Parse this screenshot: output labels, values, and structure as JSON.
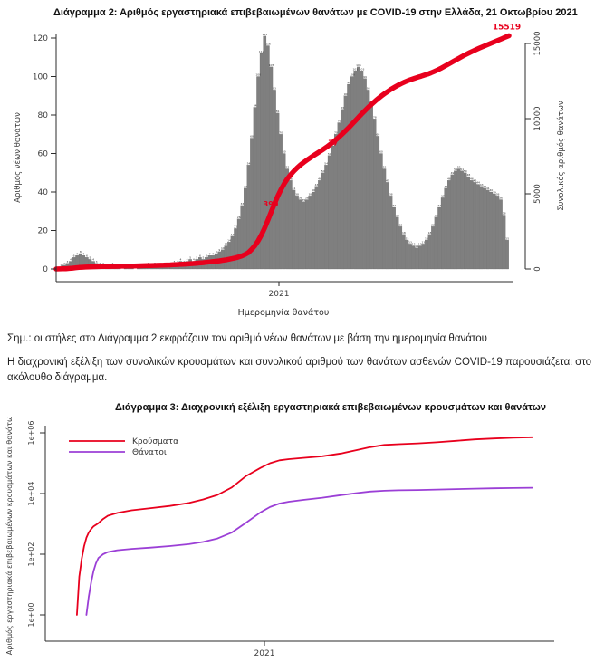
{
  "page": {
    "note": "Σημ.: οι στήλες στο Διάγραμμα 2 εκφράζουν τον αριθμό νέων θανάτων με βάση την ημερομηνία θανάτου",
    "paragraph": "Η διαχρονική εξέλιξη των συνολικών κρουσμάτων και συνολικού αριθμού των θανάτων ασθενών COVID-19 παρουσιάζεται στο ακόλουθο διάγραμμα."
  },
  "chart_data": [
    {
      "type": "bar",
      "title": "Διάγραμμα 2: Αριθμός εργαστηριακά επιβεβαιωμένων θανάτων με COVID-19 στην Ελλάδα, 21 Οκτωβρίου 2021",
      "xlabel": "Ημερομηνία θανάτου",
      "ylabel_left": "Αριθμός νέων θανάτων",
      "ylabel_right": "Συνολικός αριθμός θανάτων",
      "x_ticks": [
        "2021"
      ],
      "y_left_ticks": [
        0,
        20,
        40,
        60,
        80,
        100,
        120
      ],
      "y_right_ticks": [
        0,
        5000,
        10000,
        15000
      ],
      "ylim_left": [
        0,
        120
      ],
      "ylim_right": [
        0,
        15000
      ],
      "grid": false,
      "bar_color": "#7f7f7f",
      "line_color": "#e8001d",
      "bars_daily_deaths": [
        0,
        1,
        2,
        3,
        4,
        6,
        7,
        8,
        7,
        6,
        5,
        4,
        3,
        2,
        2,
        1,
        1,
        2,
        1,
        1,
        0,
        1,
        1,
        1,
        0,
        1,
        1,
        1,
        2,
        1,
        2,
        2,
        1,
        2,
        2,
        2,
        3,
        3,
        4,
        3,
        4,
        5,
        4,
        5,
        6,
        5,
        6,
        7,
        7,
        8,
        9,
        10,
        12,
        14,
        17,
        21,
        26,
        33,
        42,
        54,
        68,
        84,
        100,
        112,
        121,
        116,
        105,
        93,
        81,
        70,
        60,
        52,
        46,
        41,
        38,
        36,
        35,
        36,
        38,
        40,
        43,
        46,
        50,
        54,
        59,
        64,
        70,
        76,
        83,
        90,
        96,
        100,
        103,
        105,
        103,
        99,
        93,
        86,
        78,
        69,
        60,
        52,
        45,
        38,
        32,
        27,
        22,
        18,
        15,
        13,
        12,
        11,
        12,
        13,
        15,
        18,
        22,
        27,
        32,
        37,
        42,
        46,
        49,
        51,
        52,
        51,
        50,
        48,
        46,
        45,
        44,
        43,
        42,
        41,
        40,
        39,
        38,
        36,
        28,
        15
      ],
      "line_cumulative_deaths": [
        0,
        4,
        10,
        20,
        35,
        55,
        80,
        100,
        115,
        128,
        137,
        145,
        151,
        156,
        161,
        165,
        169,
        173,
        177,
        181,
        185,
        189,
        193,
        197,
        201,
        206,
        211,
        216,
        222,
        228,
        234,
        241,
        248,
        256,
        264,
        273,
        283,
        294,
        306,
        319,
        333,
        348,
        364,
        381,
        399,
        418,
        439,
        461,
        485,
        511,
        539,
        570,
        604,
        642,
        685,
        735,
        795,
        870,
        965,
        1085,
        1300,
        1550,
        1870,
        2260,
        2720,
        3240,
        3790,
        4330,
        4830,
        5280,
        5670,
        6000,
        6280,
        6520,
        6730,
        6920,
        7090,
        7250,
        7400,
        7540,
        7680,
        7820,
        7960,
        8110,
        8270,
        8440,
        8620,
        8810,
        9010,
        9220,
        9440,
        9670,
        9900,
        10130,
        10360,
        10580,
        10790,
        10990,
        11180,
        11360,
        11530,
        11690,
        11840,
        11980,
        12110,
        12230,
        12340,
        12440,
        12530,
        12610,
        12680,
        12750,
        12820,
        12890,
        12960,
        13040,
        13130,
        13230,
        13340,
        13460,
        13580,
        13700,
        13820,
        13940,
        14060,
        14180,
        14290,
        14400,
        14500,
        14600,
        14700,
        14790,
        14880,
        14970,
        15060,
        15150,
        15240,
        15330,
        15430,
        15519
      ],
      "annotations": [
        {
          "label": "390",
          "x": 0.474,
          "value": 4350,
          "front": false
        },
        {
          "label": "77",
          "x": 0.612,
          "value": 8400,
          "front": false
        },
        {
          "label": "15519",
          "x": 0.995,
          "value": 15519,
          "front": true
        }
      ]
    },
    {
      "type": "line",
      "title": "Διάγραμμα 3: Διαχρονική εξέλιξη εργαστηριακά επιβεβαιωμένων κρουσμάτων και θανάτων",
      "ylabel": "Αριθμός εργαστηριακά επιβεβαιωμένων κρουσμάτων και θανάτων",
      "yscale": "log",
      "x_ticks": [
        "2021"
      ],
      "y_ticks": [
        "1e+00",
        "1e+02",
        "1e+04",
        "1e+06"
      ],
      "grid": false,
      "legend_position": "top-left",
      "legend": [
        {
          "label": "Κρούσματα",
          "color": "#e8001d"
        },
        {
          "label": "Θάνατοι",
          "color": "#9b3fd6"
        }
      ],
      "series": [
        {
          "name": "Κρούσματα",
          "color": "#e8001d",
          "points": [
            [
              0.045,
              1
            ],
            [
              0.05,
              18
            ],
            [
              0.055,
              70
            ],
            [
              0.06,
              180
            ],
            [
              0.065,
              350
            ],
            [
              0.07,
              520
            ],
            [
              0.075,
              680
            ],
            [
              0.08,
              830
            ],
            [
              0.09,
              1060
            ],
            [
              0.1,
              1450
            ],
            [
              0.11,
              1850
            ],
            [
              0.13,
              2300
            ],
            [
              0.16,
              2800
            ],
            [
              0.2,
              3300
            ],
            [
              0.24,
              3900
            ],
            [
              0.28,
              4900
            ],
            [
              0.31,
              6400
            ],
            [
              0.34,
              9000
            ],
            [
              0.37,
              16000
            ],
            [
              0.4,
              38000
            ],
            [
              0.43,
              70000
            ],
            [
              0.45,
              100000
            ],
            [
              0.47,
              125000
            ],
            [
              0.49,
              136000
            ],
            [
              0.52,
              150000
            ],
            [
              0.56,
              170000
            ],
            [
              0.6,
              210000
            ],
            [
              0.63,
              268000
            ],
            [
              0.66,
              338000
            ],
            [
              0.69,
              400000
            ],
            [
              0.72,
              424000
            ],
            [
              0.76,
              450000
            ],
            [
              0.8,
              488000
            ],
            [
              0.84,
              548000
            ],
            [
              0.88,
              608000
            ],
            [
              0.92,
              652000
            ],
            [
              0.96,
              688000
            ],
            [
              1.0,
              718000
            ]
          ]
        },
        {
          "name": "Θάνατοι",
          "color": "#9b3fd6",
          "points": [
            [
              0.065,
              1
            ],
            [
              0.07,
              4
            ],
            [
              0.075,
              12
            ],
            [
              0.08,
              28
            ],
            [
              0.085,
              50
            ],
            [
              0.09,
              75
            ],
            [
              0.1,
              100
            ],
            [
              0.11,
              118
            ],
            [
              0.13,
              135
            ],
            [
              0.16,
              150
            ],
            [
              0.2,
              165
            ],
            [
              0.24,
              185
            ],
            [
              0.28,
              215
            ],
            [
              0.31,
              255
            ],
            [
              0.34,
              330
            ],
            [
              0.37,
              520
            ],
            [
              0.4,
              1100
            ],
            [
              0.43,
              2400
            ],
            [
              0.45,
              3600
            ],
            [
              0.47,
              4700
            ],
            [
              0.49,
              5400
            ],
            [
              0.52,
              6200
            ],
            [
              0.56,
              7300
            ],
            [
              0.6,
              8900
            ],
            [
              0.63,
              10300
            ],
            [
              0.66,
              11600
            ],
            [
              0.69,
              12400
            ],
            [
              0.72,
              12800
            ],
            [
              0.76,
              13100
            ],
            [
              0.8,
              13500
            ],
            [
              0.84,
              14000
            ],
            [
              0.88,
              14500
            ],
            [
              0.92,
              14900
            ],
            [
              0.96,
              15250
            ],
            [
              1.0,
              15519
            ]
          ]
        }
      ]
    }
  ]
}
